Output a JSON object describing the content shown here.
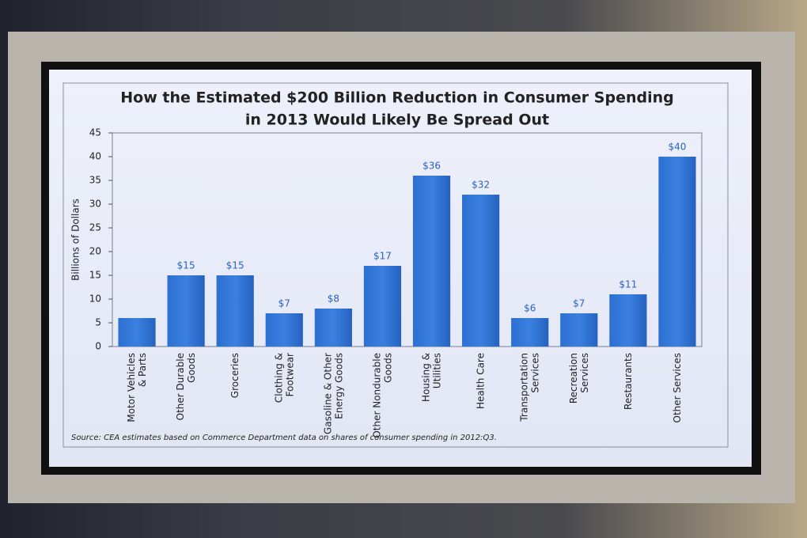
{
  "chart_data": {
    "type": "bar",
    "title": "How the Estimated $200 Billion Reduction in Consumer Spending",
    "title_line2": "in 2013 Would Likely Be Spread Out",
    "y_label": "Billions of Dollars",
    "source": "Source: CEA estimates based on Commerce Department data on shares of consumer spending in 2012:Q3.",
    "categories": [
      "Motor Vehicles\n& Parts",
      "Other Durable\nGoods",
      "Groceries",
      "Clothing &\nFootwear",
      "Gasoline & Other\nEnergy Goods",
      "Other Nondurable\nGoods",
      "Housing &\nUtilities",
      "Health Care",
      "Transportation\nServices",
      "Recreation\nServices",
      "Restaurants",
      "Other Services"
    ],
    "values": [
      6,
      15,
      15,
      7,
      8,
      17,
      36,
      32,
      6,
      7,
      11,
      40
    ],
    "value_labels": [
      null,
      "$15",
      "$15",
      "$7",
      "$8",
      "$17",
      "$36",
      "$32",
      "$6",
      "$7",
      "$11",
      "$40"
    ],
    "color": "#2f74d8",
    "ylim": [
      0,
      45
    ],
    "yticks": [
      0,
      5,
      10,
      15,
      20,
      25,
      30,
      35,
      40,
      45
    ],
    "grid": false
  }
}
